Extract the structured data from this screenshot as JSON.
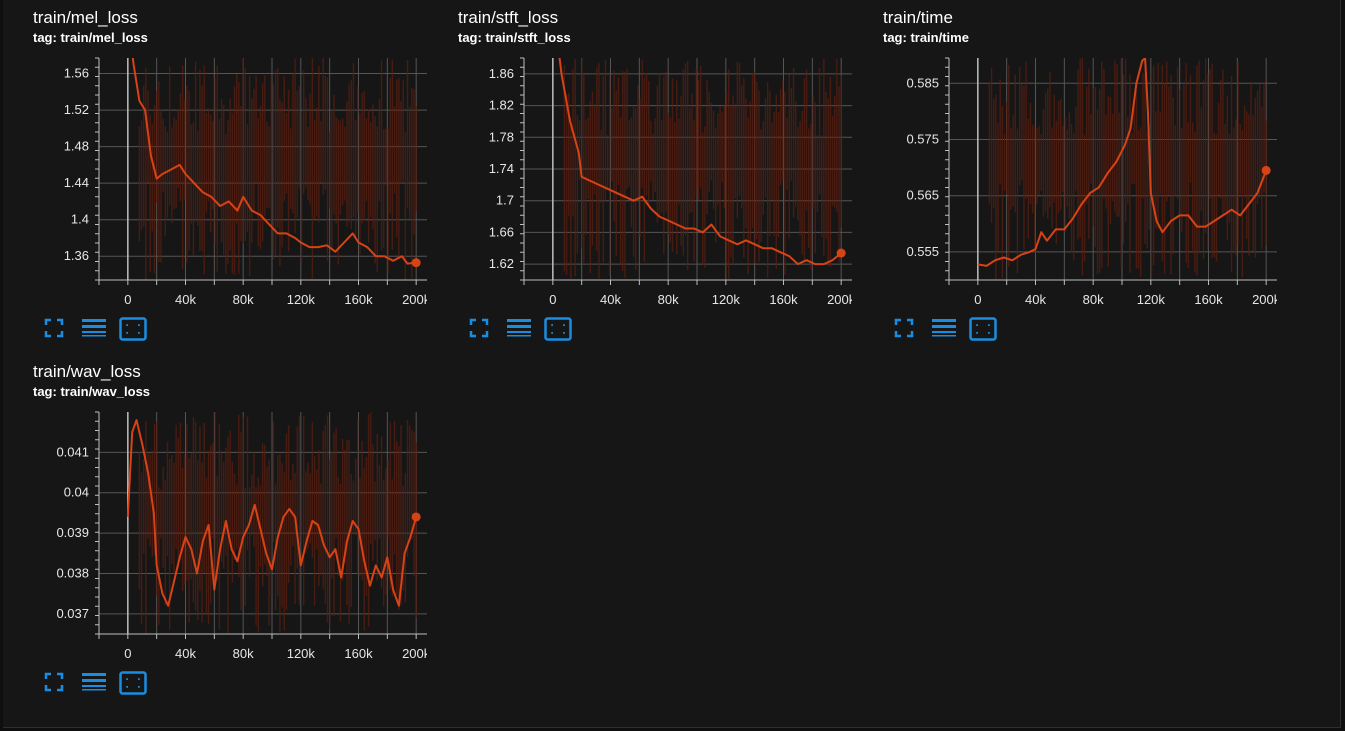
{
  "colors": {
    "background": "#161616",
    "grid": "#555555",
    "axis": "#bfbfbf",
    "series": "#d84315",
    "raw_series": "#5a1e10",
    "icon": "#1a8de0"
  },
  "toolbar_icons": [
    "fullscreen-icon",
    "toggle-log-icon",
    "fit-domain-icon"
  ],
  "cards": [
    {
      "title": "train/mel_loss",
      "tag": "tag: train/mel_loss",
      "chart_data": {
        "type": "line",
        "x_ticks": [
          "0",
          "40k",
          "80k",
          "120k",
          "160k",
          "200k"
        ],
        "y_ticks": [
          "1.36",
          "1.4",
          "1.44",
          "1.48",
          "1.52",
          "1.56"
        ],
        "xlim": [
          -20000,
          220000
        ],
        "ylim": [
          1.334,
          1.577
        ],
        "series": [
          {
            "points": [
              [
                0,
                1.62
              ],
              [
                4000,
                1.57
              ],
              [
                8000,
                1.53
              ],
              [
                12000,
                1.52
              ],
              [
                16000,
                1.47
              ],
              [
                20000,
                1.445
              ],
              [
                24000,
                1.45
              ],
              [
                30000,
                1.455
              ],
              [
                36000,
                1.46
              ],
              [
                40000,
                1.45
              ],
              [
                46000,
                1.44
              ],
              [
                52000,
                1.43
              ],
              [
                58000,
                1.425
              ],
              [
                64000,
                1.415
              ],
              [
                70000,
                1.42
              ],
              [
                76000,
                1.41
              ],
              [
                80000,
                1.425
              ],
              [
                86000,
                1.41
              ],
              [
                92000,
                1.405
              ],
              [
                98000,
                1.395
              ],
              [
                104000,
                1.385
              ],
              [
                110000,
                1.385
              ],
              [
                116000,
                1.38
              ],
              [
                120000,
                1.375
              ],
              [
                126000,
                1.37
              ],
              [
                132000,
                1.37
              ],
              [
                138000,
                1.372
              ],
              [
                144000,
                1.365
              ],
              [
                150000,
                1.375
              ],
              [
                156000,
                1.385
              ],
              [
                160000,
                1.375
              ],
              [
                166000,
                1.37
              ],
              [
                172000,
                1.36
              ],
              [
                178000,
                1.36
              ],
              [
                184000,
                1.355
              ],
              [
                190000,
                1.36
              ],
              [
                194000,
                1.352
              ],
              [
                200000,
                1.353
              ]
            ]
          }
        ],
        "raw_range": [
          1.33,
          1.58
        ]
      }
    },
    {
      "title": "train/stft_loss",
      "tag": "tag: train/stft_loss",
      "chart_data": {
        "type": "line",
        "x_ticks": [
          "0",
          "40k",
          "80k",
          "120k",
          "160k",
          "200k"
        ],
        "y_ticks": [
          "1.62",
          "1.66",
          "1.7",
          "1.74",
          "1.78",
          "1.82",
          "1.86"
        ],
        "xlim": [
          -20000,
          220000
        ],
        "ylim": [
          1.6,
          1.88
        ],
        "series": [
          {
            "points": [
              [
                0,
                1.95
              ],
              [
                6000,
                1.86
              ],
              [
                12000,
                1.8
              ],
              [
                18000,
                1.76
              ],
              [
                20000,
                1.73
              ],
              [
                26000,
                1.725
              ],
              [
                32000,
                1.72
              ],
              [
                38000,
                1.715
              ],
              [
                44000,
                1.71
              ],
              [
                50000,
                1.705
              ],
              [
                56000,
                1.7
              ],
              [
                62000,
                1.705
              ],
              [
                68000,
                1.69
              ],
              [
                74000,
                1.68
              ],
              [
                80000,
                1.675
              ],
              [
                86000,
                1.67
              ],
              [
                92000,
                1.665
              ],
              [
                98000,
                1.665
              ],
              [
                104000,
                1.66
              ],
              [
                110000,
                1.67
              ],
              [
                116000,
                1.655
              ],
              [
                122000,
                1.65
              ],
              [
                128000,
                1.645
              ],
              [
                134000,
                1.65
              ],
              [
                140000,
                1.645
              ],
              [
                146000,
                1.64
              ],
              [
                152000,
                1.64
              ],
              [
                158000,
                1.635
              ],
              [
                164000,
                1.63
              ],
              [
                170000,
                1.62
              ],
              [
                176000,
                1.625
              ],
              [
                182000,
                1.62
              ],
              [
                188000,
                1.62
              ],
              [
                194000,
                1.625
              ],
              [
                200000,
                1.634
              ]
            ]
          }
        ],
        "raw_range": [
          1.6,
          1.88
        ]
      }
    },
    {
      "title": "train/time",
      "tag": "tag: train/time",
      "chart_data": {
        "type": "line",
        "x_ticks": [
          "0",
          "40k",
          "80k",
          "120k",
          "160k",
          "200k"
        ],
        "y_ticks": [
          "0.555",
          "0.565",
          "0.575",
          "0.585"
        ],
        "xlim": [
          -20000,
          220000
        ],
        "ylim": [
          0.55,
          0.5895
        ],
        "series": [
          {
            "points": [
              [
                0,
                0.5528
              ],
              [
                6000,
                0.5525
              ],
              [
                12000,
                0.5535
              ],
              [
                18000,
                0.554
              ],
              [
                24000,
                0.5535
              ],
              [
                30000,
                0.5545
              ],
              [
                36000,
                0.555
              ],
              [
                40000,
                0.5555
              ],
              [
                44000,
                0.5585
              ],
              [
                48000,
                0.557
              ],
              [
                54000,
                0.559
              ],
              [
                60000,
                0.559
              ],
              [
                66000,
                0.561
              ],
              [
                72000,
                0.5635
              ],
              [
                78000,
                0.5655
              ],
              [
                84000,
                0.5665
              ],
              [
                90000,
                0.569
              ],
              [
                96000,
                0.571
              ],
              [
                102000,
                0.574
              ],
              [
                106000,
                0.577
              ],
              [
                110000,
                0.585
              ],
              [
                114000,
                0.589
              ],
              [
                116000,
                0.5895
              ],
              [
                118000,
                0.58
              ],
              [
                120000,
                0.5655
              ],
              [
                124000,
                0.5605
              ],
              [
                128000,
                0.5585
              ],
              [
                134000,
                0.5605
              ],
              [
                140000,
                0.5615
              ],
              [
                146000,
                0.5615
              ],
              [
                152000,
                0.5595
              ],
              [
                158000,
                0.5595
              ],
              [
                164000,
                0.5605
              ],
              [
                170000,
                0.5615
              ],
              [
                176000,
                0.5625
              ],
              [
                182000,
                0.5615
              ],
              [
                188000,
                0.5635
              ],
              [
                194000,
                0.5655
              ],
              [
                200000,
                0.5695
              ]
            ]
          }
        ],
        "raw_range": [
          0.55,
          0.5895
        ]
      }
    },
    {
      "title": "train/wav_loss",
      "tag": "tag: train/wav_loss",
      "chart_data": {
        "type": "line",
        "x_ticks": [
          "0",
          "40k",
          "80k",
          "120k",
          "160k",
          "200k"
        ],
        "y_ticks": [
          "0.037",
          "0.038",
          "0.039",
          "0.04",
          "0.041"
        ],
        "xlim": [
          -20000,
          220000
        ],
        "ylim": [
          0.0365,
          0.042
        ],
        "series": [
          {
            "points": [
              [
                0,
                0.0394
              ],
              [
                3000,
                0.0415
              ],
              [
                6000,
                0.0418
              ],
              [
                10000,
                0.0412
              ],
              [
                14000,
                0.0405
              ],
              [
                18000,
                0.0395
              ],
              [
                20000,
                0.0382
              ],
              [
                24000,
                0.0375
              ],
              [
                28000,
                0.0372
              ],
              [
                32000,
                0.0378
              ],
              [
                36000,
                0.0384
              ],
              [
                40000,
                0.0389
              ],
              [
                44000,
                0.0386
              ],
              [
                48000,
                0.038
              ],
              [
                52000,
                0.0388
              ],
              [
                56000,
                0.0392
              ],
              [
                60000,
                0.0376
              ],
              [
                64000,
                0.0386
              ],
              [
                68000,
                0.0393
              ],
              [
                72000,
                0.0386
              ],
              [
                76000,
                0.0383
              ],
              [
                80000,
                0.0389
              ],
              [
                84000,
                0.0392
              ],
              [
                88000,
                0.0397
              ],
              [
                92000,
                0.0391
              ],
              [
                96000,
                0.0385
              ],
              [
                100000,
                0.0381
              ],
              [
                104000,
                0.0389
              ],
              [
                108000,
                0.0394
              ],
              [
                112000,
                0.0396
              ],
              [
                116000,
                0.0394
              ],
              [
                120000,
                0.0382
              ],
              [
                124000,
                0.0388
              ],
              [
                128000,
                0.0393
              ],
              [
                132000,
                0.0392
              ],
              [
                136000,
                0.0387
              ],
              [
                140000,
                0.0384
              ],
              [
                144000,
                0.0386
              ],
              [
                148000,
                0.0379
              ],
              [
                152000,
                0.0388
              ],
              [
                156000,
                0.0393
              ],
              [
                160000,
                0.0391
              ],
              [
                164000,
                0.0383
              ],
              [
                168000,
                0.0377
              ],
              [
                172000,
                0.0382
              ],
              [
                176000,
                0.0379
              ],
              [
                180000,
                0.0384
              ],
              [
                184000,
                0.0376
              ],
              [
                188000,
                0.0372
              ],
              [
                192000,
                0.0385
              ],
              [
                196000,
                0.0389
              ],
              [
                200000,
                0.0394
              ]
            ]
          }
        ],
        "raw_range": [
          0.0365,
          0.042
        ]
      }
    }
  ]
}
